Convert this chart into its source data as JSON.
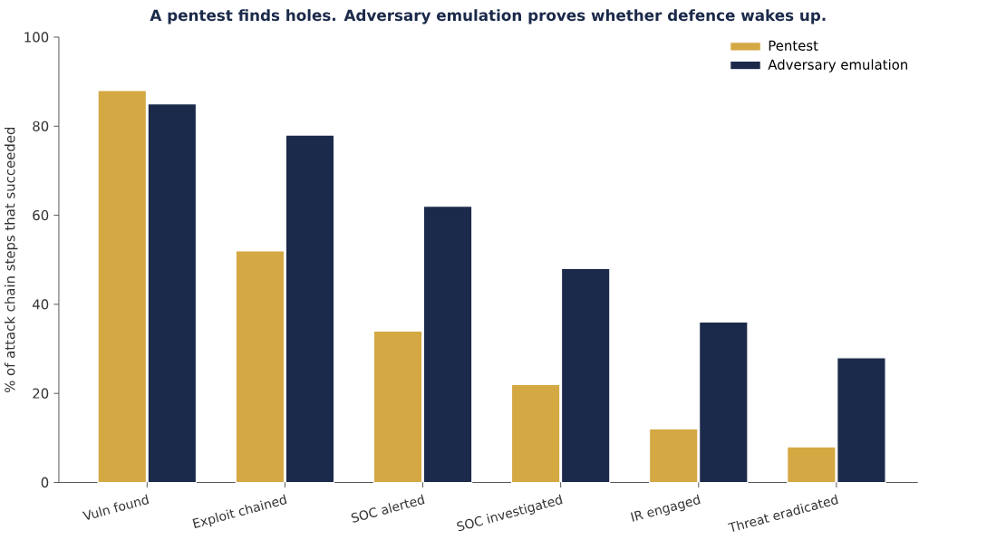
{
  "chart_data": {
    "type": "bar",
    "title": "A pentest finds holes. Adversary emulation proves whether defence wakes up.",
    "ylabel": "% of attack chain steps that succeeded",
    "categories": [
      "Vuln found",
      "Exploit chained",
      "SOC alerted",
      "SOC investigated",
      "IR engaged",
      "Threat eradicated"
    ],
    "series": [
      {
        "name": "Pentest",
        "color": "#d4a843",
        "values": [
          88,
          52,
          34,
          22,
          12,
          8
        ]
      },
      {
        "name": "Adversary emulation",
        "color": "#1b2a4a",
        "values": [
          85,
          78,
          62,
          48,
          36,
          28
        ]
      }
    ],
    "ylim": [
      0,
      100
    ],
    "yticks": [
      0,
      20,
      40,
      60,
      80,
      100
    ],
    "legend": "top right"
  }
}
